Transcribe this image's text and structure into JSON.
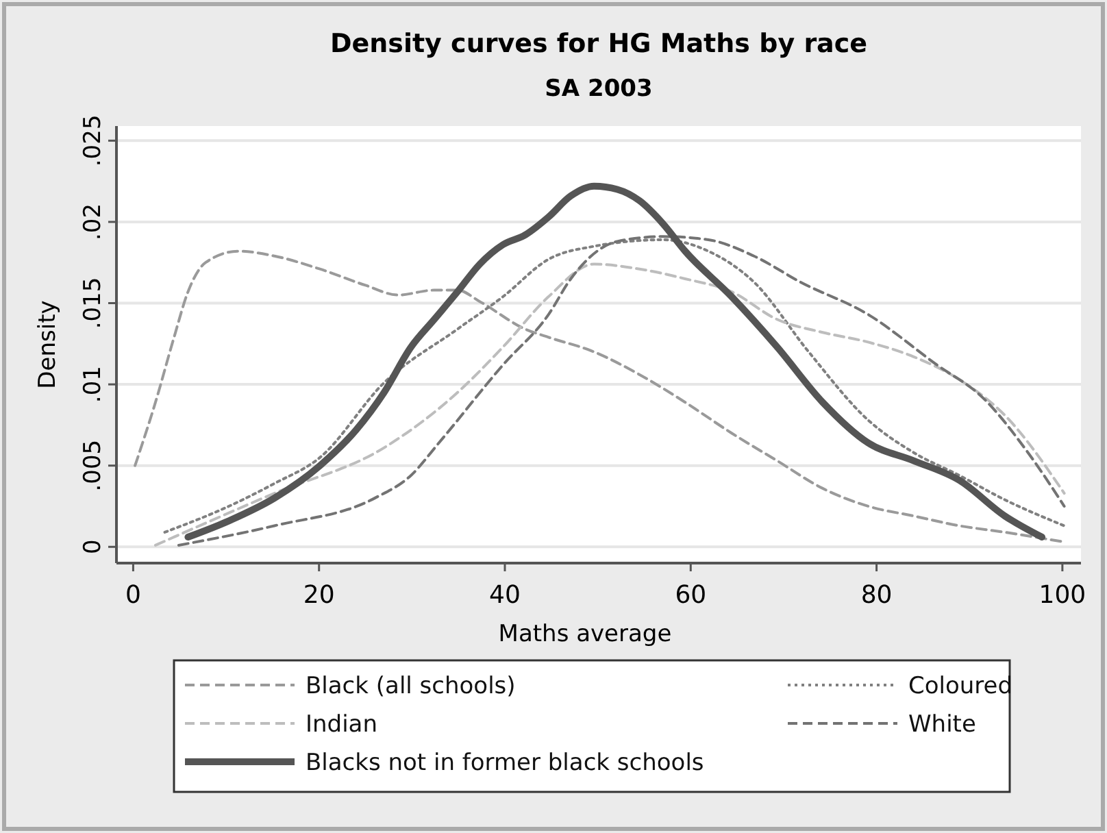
{
  "chart_data": {
    "type": "line",
    "title": "Density curves for HG Maths by race",
    "subtitle": "SA 2003",
    "xlabel": "Maths average",
    "ylabel": "Density",
    "xlim": [
      -1.8,
      102
    ],
    "xticks": [
      0,
      20,
      40,
      60,
      80,
      100
    ],
    "ylim": [
      -0.001,
      0.0259
    ],
    "yticks": [
      {
        "value": 0,
        "label": "0"
      },
      {
        "value": 0.005,
        "label": ".005"
      },
      {
        "value": 0.01,
        "label": ".01"
      },
      {
        "value": 0.015,
        "label": ".015"
      },
      {
        "value": 0.02,
        "label": ".02"
      },
      {
        "value": 0.025,
        "label": ".025"
      }
    ],
    "grid": "y",
    "legend": "bottom",
    "marker": "none",
    "series": [
      {
        "name": "Black (all schools)",
        "color": "#9a9a9a",
        "line_style": "dashed",
        "x": [
          0.2,
          2.4,
          4.4,
          5.9,
          7.8,
          11.3,
          15.2,
          20.1,
          25.0,
          28.5,
          32.4,
          34.9,
          37.3,
          42.2,
          44.7,
          49.6,
          54.5,
          59.4,
          64.4,
          69.3,
          74.2,
          79.1,
          84.0,
          88.9,
          93.8,
          100.2
        ],
        "values": [
          0.005,
          0.0089,
          0.0129,
          0.0157,
          0.0175,
          0.0182,
          0.0179,
          0.0171,
          0.0161,
          0.0155,
          0.0158,
          0.0158,
          0.0151,
          0.0134,
          0.0129,
          0.012,
          0.0106,
          0.0089,
          0.007,
          0.0053,
          0.0036,
          0.0025,
          0.0019,
          0.0013,
          0.0009,
          0.0003
        ]
      },
      {
        "name": "Coloured",
        "color": "#808080",
        "line_style": "dotted",
        "x": [
          3.4,
          10.3,
          15.2,
          20.1,
          27.0,
          34.9,
          39.8,
          44.7,
          49.6,
          57.0,
          61.9,
          66.8,
          72.7,
          79.1,
          84.0,
          88.9,
          93.8,
          100.2
        ],
        "values": [
          0.0009,
          0.0025,
          0.0039,
          0.0055,
          0.0101,
          0.0134,
          0.0154,
          0.0177,
          0.0185,
          0.0189,
          0.0182,
          0.0163,
          0.012,
          0.0078,
          0.0058,
          0.0044,
          0.0029,
          0.0013
        ]
      },
      {
        "name": "Indian",
        "color": "#bdbdbd",
        "line_style": "dashed",
        "x": [
          2.4,
          15.2,
          27.0,
          34.9,
          39.8,
          44.7,
          49.6,
          54.5,
          59.4,
          64.4,
          69.3,
          74.2,
          79.1,
          84.0,
          88.9,
          93.8,
          100.2
        ],
        "values": [
          0.0001,
          0.0033,
          0.0061,
          0.0095,
          0.0123,
          0.0154,
          0.0174,
          0.0171,
          0.0165,
          0.0157,
          0.014,
          0.0132,
          0.0126,
          0.0117,
          0.0103,
          0.0081,
          0.0033
        ]
      },
      {
        "name": "White",
        "color": "#737373",
        "line_style": "dashed",
        "x": [
          4.9,
          15.2,
          26.0,
          29.9,
          32.9,
          39.8,
          44.7,
          47.1,
          52.1,
          57.0,
          61.9,
          66.8,
          71.8,
          79.1,
          86.5,
          91.4,
          96.3,
          100.2
        ],
        "values": [
          0.0001,
          0.0013,
          0.003,
          0.0044,
          0.0064,
          0.0112,
          0.0143,
          0.0165,
          0.0188,
          0.0191,
          0.0189,
          0.0179,
          0.0163,
          0.0143,
          0.0112,
          0.0092,
          0.0058,
          0.0025
        ]
      },
      {
        "name": "Blacks not in former black schools",
        "color": "#555555",
        "line_style": "solid",
        "x": [
          5.9,
          10.3,
          15.2,
          20.1,
          24.0,
          27.0,
          29.9,
          32.4,
          34.9,
          37.3,
          39.8,
          42.2,
          44.7,
          47.1,
          49.6,
          52.1,
          54.5,
          57.0,
          59.4,
          64.4,
          69.3,
          74.2,
          79.1,
          84.0,
          88.9,
          93.8,
          97.8
        ],
        "values": [
          0.0006,
          0.0016,
          0.003,
          0.005,
          0.0072,
          0.0095,
          0.0123,
          0.014,
          0.0157,
          0.0174,
          0.0186,
          0.0192,
          0.0203,
          0.0216,
          0.0222,
          0.022,
          0.0213,
          0.0199,
          0.0182,
          0.0154,
          0.0123,
          0.0089,
          0.0064,
          0.0053,
          0.0041,
          0.0019,
          0.0006
        ]
      }
    ]
  }
}
